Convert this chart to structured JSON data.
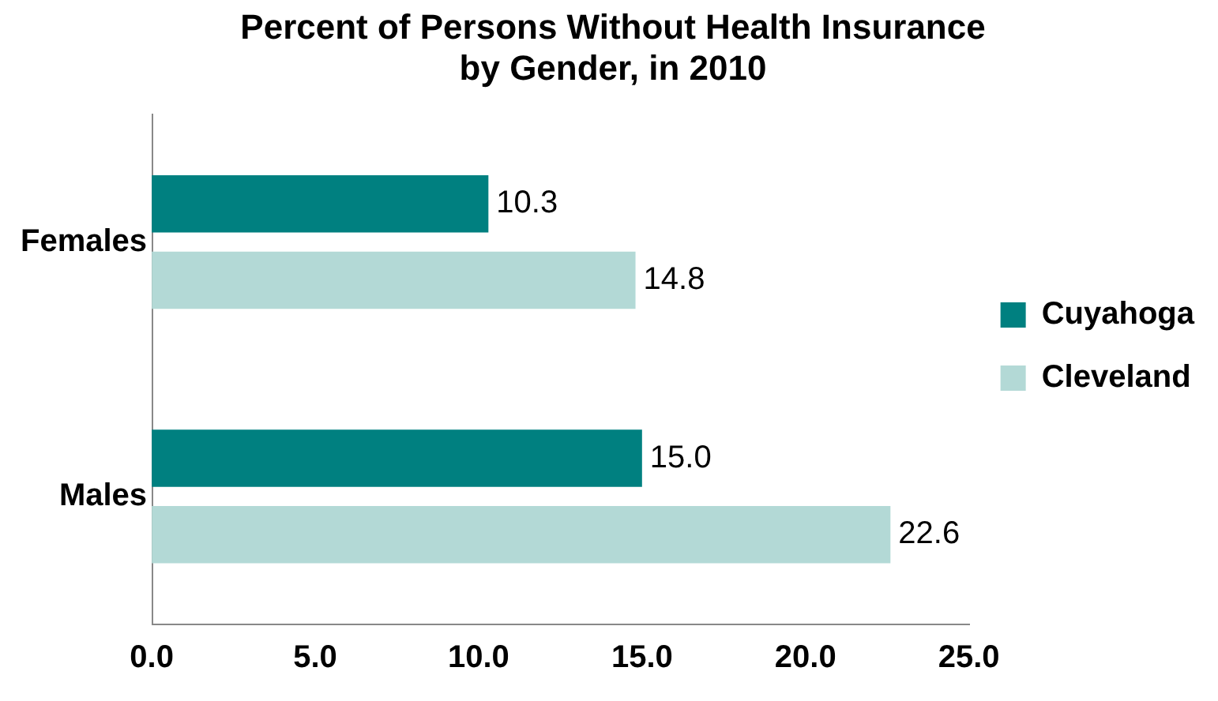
{
  "chart_data": {
    "type": "bar",
    "orientation": "horizontal",
    "title": "Percent of Persons Without Health Insurance\nby Gender, in 2010",
    "categories": [
      "Females",
      "Males"
    ],
    "series": [
      {
        "name": "Cuyahoga",
        "color": "#008080",
        "values": [
          10.3,
          15.0
        ],
        "value_labels": [
          "10.3",
          "15.0"
        ]
      },
      {
        "name": "Cleveland",
        "color": "#b3d9d6",
        "values": [
          14.8,
          22.6
        ],
        "value_labels": [
          "14.8",
          "22.6"
        ]
      }
    ],
    "xlim": [
      0,
      25
    ],
    "xticks": [
      {
        "value": 0,
        "label": "0.0"
      },
      {
        "value": 5,
        "label": "5.0"
      },
      {
        "value": 10,
        "label": "10.0"
      },
      {
        "value": 15,
        "label": "15.0"
      },
      {
        "value": 20,
        "label": "20.0"
      },
      {
        "value": 25,
        "label": "25.0"
      }
    ],
    "grid": false,
    "legend": "right"
  }
}
